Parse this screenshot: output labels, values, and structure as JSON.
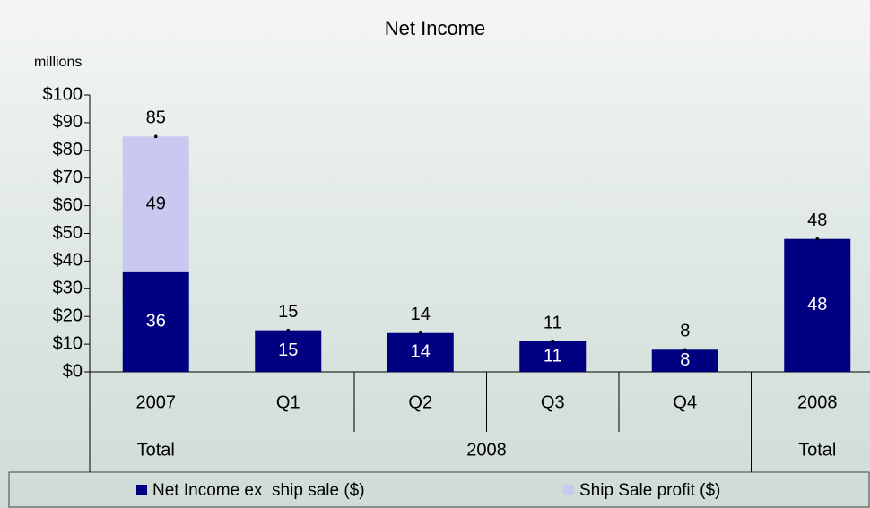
{
  "chart_data": {
    "type": "stacked-bar",
    "title": "Net Income",
    "y_label": "millions",
    "categories": [
      "2007",
      "Q1",
      "Q2",
      "Q3",
      "Q4",
      "2008"
    ],
    "groups": [
      "Total",
      "2008",
      "2008",
      "2008",
      "2008",
      "Total"
    ],
    "series": [
      {
        "name": "Net Income ex  ship sale ($)",
        "color": "#000080",
        "values": [
          36,
          15,
          14,
          11,
          8,
          48
        ]
      },
      {
        "name": "Ship Sale profit ($)",
        "color": "#c8c8f0",
        "values": [
          49,
          null,
          null,
          null,
          null,
          null
        ]
      }
    ],
    "totals": [
      85,
      15,
      14,
      11,
      8,
      48
    ],
    "ylim": [
      0,
      100
    ],
    "yticks": [
      {
        "value": 0,
        "label": "$0"
      },
      {
        "value": 10,
        "label": "$10"
      },
      {
        "value": 20,
        "label": "$20"
      },
      {
        "value": 30,
        "label": "$30"
      },
      {
        "value": 40,
        "label": "$40"
      },
      {
        "value": 50,
        "label": "$50"
      },
      {
        "value": 60,
        "label": "$60"
      },
      {
        "value": 70,
        "label": "$70"
      },
      {
        "value": 80,
        "label": "$80"
      },
      {
        "value": 90,
        "label": "$90"
      },
      {
        "value": 100,
        "label": "$100"
      }
    ],
    "legend": "bottom"
  }
}
